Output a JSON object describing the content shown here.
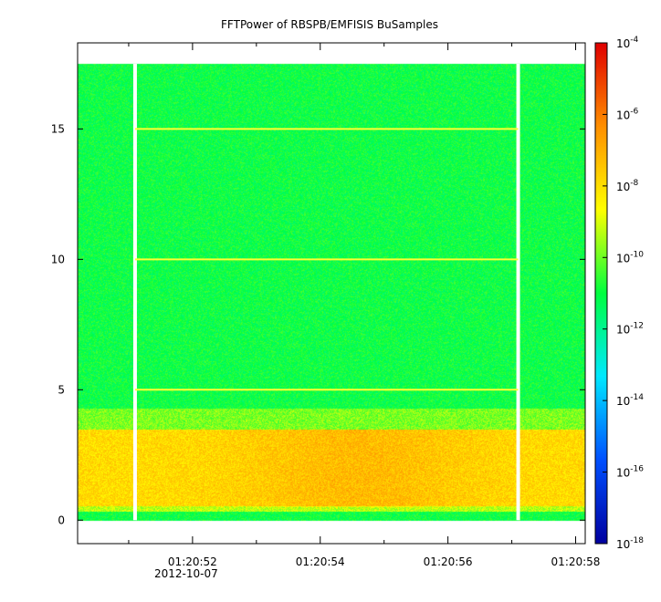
{
  "chart_data": {
    "type": "heatmap",
    "title": "FFTPower of RBSPB/EMFISIS  BuSamples",
    "xlabel": "",
    "ylabel": "",
    "x_ticks": [
      {
        "value": 52,
        "label": "01:20:52",
        "sublabel": "2012-10-07"
      },
      {
        "value": 54,
        "label": "01:20:54"
      },
      {
        "value": 56,
        "label": "01:20:56"
      },
      {
        "value": 58,
        "label": "01:20:58"
      }
    ],
    "x_minor_ticks": [
      51,
      53,
      55,
      57
    ],
    "xlim": [
      50.2,
      58.15
    ],
    "data_time_range": [
      50.2,
      58.15
    ],
    "y_ticks": [
      0,
      5,
      10,
      15
    ],
    "ylim": [
      -0.9,
      18.3
    ],
    "data_freq_range": [
      0,
      17.5
    ],
    "gap_times": [
      51.1,
      57.1
    ],
    "harmonic_lines": [
      5,
      10,
      15
    ],
    "harmonic_lines_time_range": [
      51.1,
      57.1
    ],
    "colorbar": {
      "scale": "log",
      "range_exponents": [
        -18,
        -4
      ],
      "tick_base": "10",
      "tick_exponents": [
        "-4",
        "-6",
        "-8",
        "-10",
        "-12",
        "-14",
        "-16",
        "-18"
      ],
      "colormap": [
        "#0000a0",
        "#0050ff",
        "#00e8ff",
        "#00ff40",
        "#ffff00",
        "#ff9000",
        "#e00000"
      ]
    },
    "intensity_profile": [
      {
        "freq_max": 0.35,
        "level": 0.5
      },
      {
        "freq_max": 0.55,
        "level": 0.62
      },
      {
        "freq_max": 3.5,
        "level": 0.72
      },
      {
        "freq_max": 4.3,
        "level": 0.58
      },
      {
        "freq_max": 17.5,
        "level": 0.5
      }
    ],
    "background_level_exponent": -10
  }
}
